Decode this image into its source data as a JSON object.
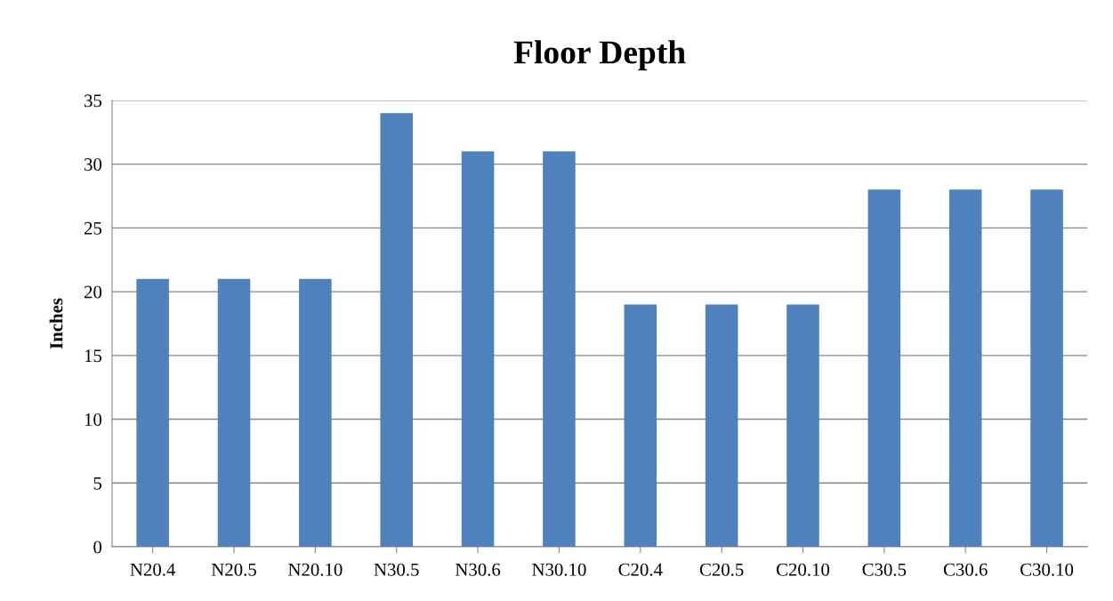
{
  "chart_data": {
    "type": "bar",
    "title": "Floor Depth",
    "ylabel": "Inches",
    "categories": [
      "N20.4",
      "N20.5",
      "N20.10",
      "N30.5",
      "N30.6",
      "N30.10",
      "C20.4",
      "C20.5",
      "C20.10",
      "C30.5",
      "C30.6",
      "C30.10"
    ],
    "values": [
      21,
      21,
      21,
      34,
      31,
      31,
      19,
      19,
      19,
      28,
      28,
      28
    ],
    "color": "#4f81bd",
    "ylim": [
      0,
      35
    ],
    "yticks": [
      0,
      5,
      10,
      15,
      20,
      25,
      30,
      35
    ],
    "grid": "y",
    "legend": false
  }
}
